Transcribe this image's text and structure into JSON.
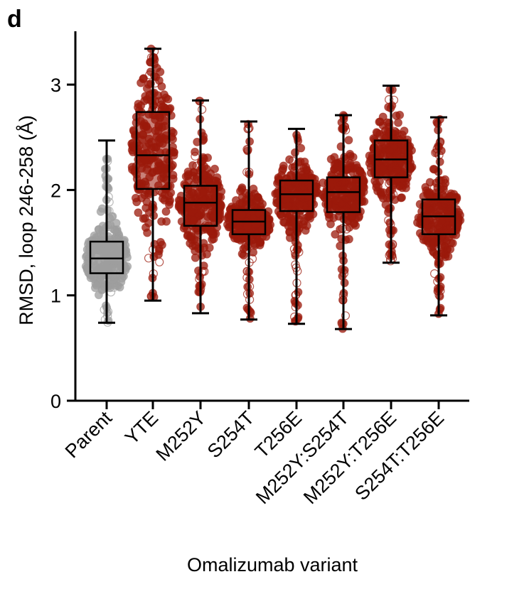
{
  "panel_label": "d",
  "chart_data": {
    "type": "violin-box-scatter",
    "xlabel": "Omalizumab variant",
    "ylabel": "RMSD, loop 246-258 (Å)",
    "ylim": [
      0,
      3.5
    ],
    "yticks": [
      0,
      1,
      2,
      3
    ],
    "categories": [
      "Parent",
      "YTE",
      "M252Y",
      "S254T",
      "T256E",
      "M252Y:S254T",
      "M252Y:T256E",
      "S254T:T256E"
    ],
    "colors": [
      "#9e9e9e",
      "#9b1a0b",
      "#9b1a0b",
      "#9b1a0b",
      "#9b1a0b",
      "#9b1a0b",
      "#9b1a0b",
      "#9b1a0b"
    ],
    "stats": [
      {
        "name": "Parent",
        "min": 0.74,
        "q1": 1.21,
        "median": 1.35,
        "q3": 1.51,
        "max": 2.47
      },
      {
        "name": "YTE",
        "min": 0.95,
        "q1": 2.01,
        "median": 2.33,
        "q3": 2.74,
        "max": 3.34
      },
      {
        "name": "M252Y",
        "min": 0.83,
        "q1": 1.66,
        "median": 1.88,
        "q3": 2.04,
        "max": 2.85
      },
      {
        "name": "S254T",
        "min": 0.77,
        "q1": 1.58,
        "median": 1.7,
        "q3": 1.81,
        "max": 2.65
      },
      {
        "name": "T256E",
        "min": 0.73,
        "q1": 1.8,
        "median": 1.96,
        "q3": 2.09,
        "max": 2.58
      },
      {
        "name": "M252Y:S254T",
        "min": 0.68,
        "q1": 1.79,
        "median": 1.98,
        "q3": 2.12,
        "max": 2.71
      },
      {
        "name": "M252Y:T256E",
        "min": 1.31,
        "q1": 2.12,
        "median": 2.29,
        "q3": 2.47,
        "max": 2.99
      },
      {
        "name": "S254T:T256E",
        "min": 0.81,
        "q1": 1.58,
        "median": 1.75,
        "q3": 1.91,
        "max": 2.69
      }
    ]
  }
}
